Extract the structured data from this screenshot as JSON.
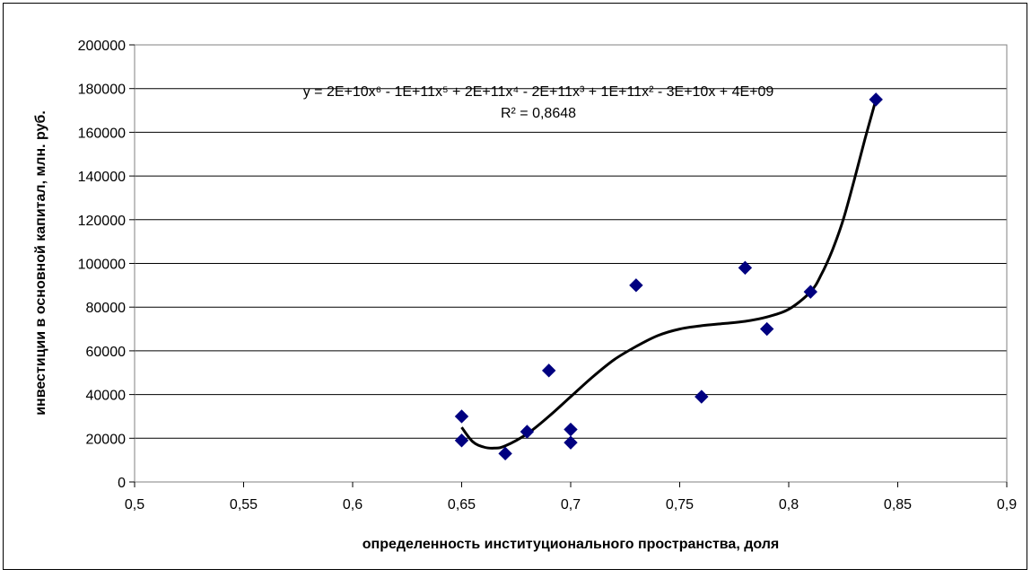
{
  "chart_data": {
    "type": "scatter",
    "title": "",
    "xlabel": "определенность институционального пространства, доля",
    "ylabel": "инвестиции в основной капитал, млн. руб.",
    "xlim": [
      0.5,
      0.9
    ],
    "ylim": [
      0,
      200000
    ],
    "x_ticks": [
      0.5,
      0.55,
      0.6,
      0.65,
      0.7,
      0.75,
      0.8,
      0.85,
      0.9
    ],
    "x_tick_labels": [
      "0,5",
      "0,55",
      "0,6",
      "0,65",
      "0,7",
      "0,75",
      "0,8",
      "0,85",
      "0,9"
    ],
    "y_ticks": [
      0,
      20000,
      40000,
      60000,
      80000,
      100000,
      120000,
      140000,
      160000,
      180000,
      200000
    ],
    "y_tick_labels": [
      "0",
      "20000",
      "40000",
      "60000",
      "80000",
      "100000",
      "120000",
      "140000",
      "160000",
      "180000",
      "200000"
    ],
    "grid": "horizontal",
    "legend": "none",
    "marker": "diamond",
    "marker_color": "#000080",
    "trend_color": "#000000",
    "points": [
      {
        "x": 0.65,
        "y": 30000
      },
      {
        "x": 0.65,
        "y": 19000
      },
      {
        "x": 0.67,
        "y": 13000
      },
      {
        "x": 0.68,
        "y": 23000
      },
      {
        "x": 0.69,
        "y": 51000
      },
      {
        "x": 0.7,
        "y": 24000
      },
      {
        "x": 0.7,
        "y": 18000
      },
      {
        "x": 0.73,
        "y": 90000
      },
      {
        "x": 0.76,
        "y": 39000
      },
      {
        "x": 0.78,
        "y": 98000
      },
      {
        "x": 0.79,
        "y": 70000
      },
      {
        "x": 0.81,
        "y": 87000
      },
      {
        "x": 0.84,
        "y": 175000
      }
    ],
    "trendline": {
      "type": "polynomial",
      "order": 6,
      "equation": "y = 2E+10x⁶ - 1E+11x⁵ + 2E+11x⁴ - 2E+11x³ + 1E+11x² - 3E+10x + 4E+09",
      "r_squared": "R² = 0,8648",
      "curve": [
        {
          "x": 0.65,
          "y": 25000
        },
        {
          "x": 0.655,
          "y": 18500
        },
        {
          "x": 0.66,
          "y": 16000
        },
        {
          "x": 0.665,
          "y": 15500
        },
        {
          "x": 0.67,
          "y": 16500
        },
        {
          "x": 0.68,
          "y": 22000
        },
        {
          "x": 0.69,
          "y": 30000
        },
        {
          "x": 0.7,
          "y": 39000
        },
        {
          "x": 0.71,
          "y": 48000
        },
        {
          "x": 0.72,
          "y": 56000
        },
        {
          "x": 0.73,
          "y": 62000
        },
        {
          "x": 0.74,
          "y": 67000
        },
        {
          "x": 0.75,
          "y": 70000
        },
        {
          "x": 0.76,
          "y": 71500
        },
        {
          "x": 0.77,
          "y": 72500
        },
        {
          "x": 0.78,
          "y": 73500
        },
        {
          "x": 0.79,
          "y": 75500
        },
        {
          "x": 0.8,
          "y": 79000
        },
        {
          "x": 0.81,
          "y": 87000
        },
        {
          "x": 0.815,
          "y": 95000
        },
        {
          "x": 0.82,
          "y": 106000
        },
        {
          "x": 0.825,
          "y": 120000
        },
        {
          "x": 0.83,
          "y": 138000
        },
        {
          "x": 0.835,
          "y": 157000
        },
        {
          "x": 0.84,
          "y": 175000
        }
      ]
    }
  }
}
